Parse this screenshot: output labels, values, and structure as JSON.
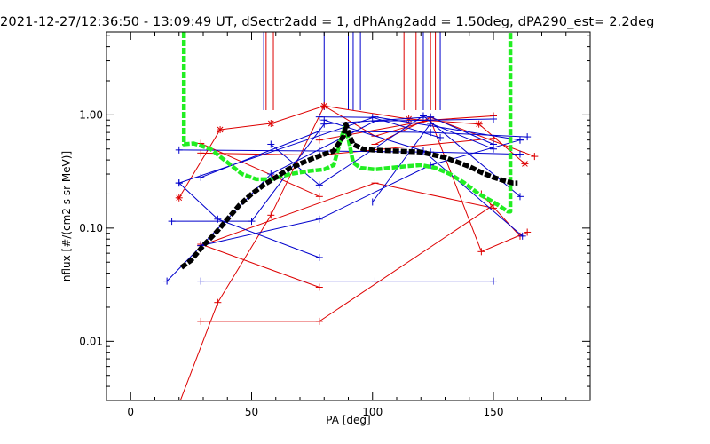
{
  "title": "2021-12-27/12:36:50 - 13:09:49 UT, dSectr2add = 1, dPhAng2add = 1.50deg, dPA290_est=   2.2deg",
  "chart_data": {
    "type": "line",
    "xlabel": "PA [deg]",
    "ylabel": "nflux [#/(cm2 s sr MeV)]",
    "xlim": [
      -10,
      190
    ],
    "ylim": [
      0.003,
      5.4
    ],
    "yscale": "log",
    "grid": false,
    "x_ticks": [
      0,
      50,
      100,
      150
    ],
    "x_tick_labels": [
      "0",
      "50",
      "100",
      "150"
    ],
    "y_ticks": [
      0.01,
      0.1,
      1.0
    ],
    "y_tick_labels": [
      "0.01",
      "0.10",
      "1.00"
    ],
    "colors": {
      "red": "#dd0000",
      "blue": "#0000cc",
      "green": "#22ee22",
      "black": "#000000"
    },
    "vertical_markers": [
      {
        "color": "red",
        "x": [
          56,
          59,
          113,
          118,
          124,
          126
        ]
      },
      {
        "color": "blue",
        "x": [
          55,
          80,
          90,
          92,
          95,
          121,
          128
        ]
      }
    ],
    "series": [
      {
        "color": "red",
        "marker": "plus",
        "points": [
          [
            20,
            0.0028
          ],
          [
            36,
            0.022
          ],
          [
            58,
            0.13
          ],
          [
            80,
            1.2
          ],
          [
            101,
            0.65
          ],
          [
            124,
            0.9
          ],
          [
            145,
            0.062
          ],
          [
            164,
            0.092
          ]
        ]
      },
      {
        "color": "red",
        "marker": "plus",
        "points": [
          [
            29,
            0.015
          ],
          [
            78,
            0.015
          ],
          [
            150,
            0.16
          ]
        ]
      },
      {
        "color": "red",
        "marker": "plus",
        "points": [
          [
            29,
            0.072
          ],
          [
            78,
            0.03
          ]
        ]
      },
      {
        "color": "red",
        "marker": "plus",
        "points": [
          [
            29,
            0.07
          ],
          [
            101,
            0.25
          ],
          [
            150,
            0.15
          ]
        ]
      },
      {
        "color": "red",
        "marker": "plus",
        "points": [
          [
            29,
            0.56
          ],
          [
            78,
            0.19
          ]
        ]
      },
      {
        "color": "red",
        "marker": "plus",
        "points": [
          [
            78,
            0.6
          ],
          [
            124,
            0.9
          ],
          [
            150,
            0.98
          ]
        ]
      },
      {
        "color": "red",
        "marker": "plus",
        "points": [
          [
            29,
            0.46
          ],
          [
            78,
            0.44
          ],
          [
            150,
            0.62
          ]
        ]
      },
      {
        "color": "red",
        "marker": "plus",
        "points": [
          [
            101,
            0.55
          ],
          [
            124,
            0.95
          ],
          [
            167,
            0.43
          ]
        ]
      },
      {
        "color": "red",
        "marker": "plus",
        "points": [
          [
            145,
            0.2
          ],
          [
            161,
            0.085
          ]
        ]
      },
      {
        "color": "red",
        "marker": "asterisk",
        "points": [
          [
            20,
            0.185
          ],
          [
            37,
            0.74
          ],
          [
            58,
            0.84
          ],
          [
            80,
            1.2
          ],
          [
            115,
            0.92
          ],
          [
            144,
            0.83
          ],
          [
            163,
            0.37
          ]
        ]
      },
      {
        "color": "blue",
        "marker": "plus",
        "points": [
          [
            20,
            0.25
          ],
          [
            36,
            0.12
          ],
          [
            78,
            0.055
          ]
        ]
      },
      {
        "color": "blue",
        "marker": "plus",
        "points": [
          [
            20,
            0.49
          ],
          [
            78,
            0.48
          ],
          [
            124,
            0.47
          ],
          [
            161,
            0.45
          ]
        ]
      },
      {
        "color": "blue",
        "marker": "plus",
        "points": [
          [
            20,
            0.25
          ],
          [
            101,
            0.96
          ],
          [
            161,
            0.6
          ]
        ]
      },
      {
        "color": "blue",
        "marker": "plus",
        "points": [
          [
            17,
            0.115
          ],
          [
            50,
            0.115
          ],
          [
            80,
            0.83
          ],
          [
            124,
            0.96
          ],
          [
            150,
            0.55
          ]
        ]
      },
      {
        "color": "blue",
        "marker": "plus",
        "points": [
          [
            15,
            0.034
          ],
          [
            58,
            0.3
          ],
          [
            101,
            0.88
          ],
          [
            150,
            0.92
          ]
        ]
      },
      {
        "color": "blue",
        "marker": "plus",
        "points": [
          [
            29,
            0.034
          ],
          [
            101,
            0.034
          ],
          [
            150,
            0.034
          ]
        ]
      },
      {
        "color": "blue",
        "marker": "plus",
        "points": [
          [
            29,
            0.07
          ],
          [
            78,
            0.12
          ],
          [
            124,
            0.36
          ],
          [
            161,
            0.6
          ]
        ]
      },
      {
        "color": "blue",
        "marker": "plus",
        "points": [
          [
            29,
            0.28
          ],
          [
            78,
            0.72
          ],
          [
            124,
            0.7
          ],
          [
            164,
            0.64
          ]
        ]
      },
      {
        "color": "blue",
        "marker": "plus",
        "points": [
          [
            58,
            0.55
          ],
          [
            78,
            0.24
          ],
          [
            121,
            0.98
          ],
          [
            161,
            0.19
          ]
        ]
      },
      {
        "color": "blue",
        "marker": "plus",
        "points": [
          [
            78,
            0.96
          ],
          [
            100,
            0.95
          ],
          [
            128,
            0.63
          ]
        ]
      },
      {
        "color": "blue",
        "marker": "plus",
        "points": [
          [
            100,
            0.17
          ],
          [
            124,
            0.84
          ],
          [
            150,
            0.5
          ]
        ]
      },
      {
        "color": "blue",
        "marker": "plus",
        "points": [
          [
            80,
            0.9
          ],
          [
            121,
            0.48
          ],
          [
            162,
            0.085
          ]
        ]
      },
      {
        "color": "green",
        "style": "dashed",
        "points": [
          [
            22,
            5.4
          ],
          [
            22,
            0.55
          ],
          [
            26,
            0.56
          ],
          [
            33,
            0.5
          ],
          [
            40,
            0.38
          ],
          [
            46,
            0.3
          ],
          [
            52,
            0.27
          ],
          [
            58,
            0.27
          ],
          [
            66,
            0.3
          ],
          [
            74,
            0.32
          ],
          [
            80,
            0.33
          ],
          [
            84,
            0.36
          ],
          [
            87,
            0.62
          ],
          [
            88.5,
            0.78
          ],
          [
            90,
            0.62
          ],
          [
            92,
            0.38
          ],
          [
            95,
            0.34
          ],
          [
            101,
            0.33
          ],
          [
            107,
            0.34
          ],
          [
            113,
            0.35
          ],
          [
            120,
            0.36
          ],
          [
            126,
            0.34
          ],
          [
            132,
            0.3
          ],
          [
            138,
            0.25
          ],
          [
            144,
            0.2
          ],
          [
            150,
            0.17
          ],
          [
            156,
            0.14
          ],
          [
            157,
            0.14
          ],
          [
            157,
            5.4
          ]
        ]
      },
      {
        "color": "black",
        "style": "dashed",
        "points": [
          [
            21,
            0.045
          ],
          [
            25,
            0.052
          ],
          [
            30,
            0.07
          ],
          [
            35,
            0.09
          ],
          [
            40,
            0.12
          ],
          [
            45,
            0.16
          ],
          [
            50,
            0.2
          ],
          [
            55,
            0.24
          ],
          [
            60,
            0.28
          ],
          [
            65,
            0.33
          ],
          [
            70,
            0.37
          ],
          [
            75,
            0.41
          ],
          [
            80,
            0.45
          ],
          [
            84,
            0.48
          ],
          [
            88,
            0.65
          ],
          [
            89,
            0.83
          ],
          [
            90,
            0.7
          ],
          [
            92,
            0.55
          ],
          [
            96,
            0.5
          ],
          [
            100,
            0.49
          ],
          [
            110,
            0.48
          ],
          [
            120,
            0.47
          ],
          [
            130,
            0.42
          ],
          [
            140,
            0.35
          ],
          [
            145,
            0.31
          ],
          [
            150,
            0.28
          ],
          [
            155,
            0.26
          ],
          [
            158,
            0.25
          ],
          [
            160,
            0.25
          ]
        ]
      }
    ]
  }
}
